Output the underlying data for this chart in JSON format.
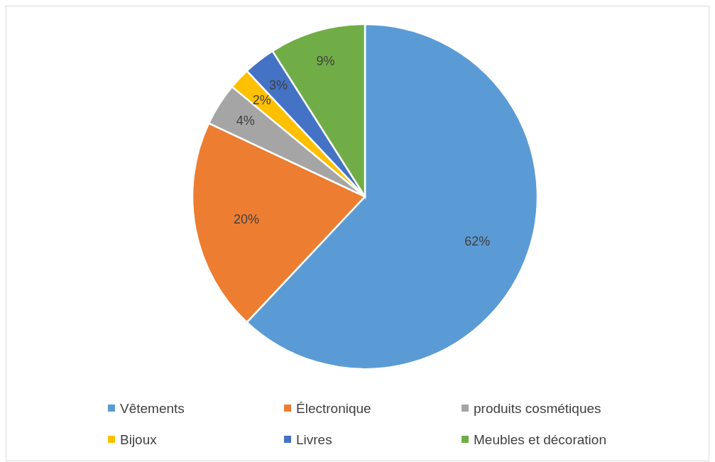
{
  "chart_data": {
    "type": "pie",
    "categories": [
      "Vêtements",
      "Électronique",
      "produits cosmétiques",
      "Bijoux",
      "Livres",
      "Meubles et décoration"
    ],
    "values": [
      62,
      20,
      4,
      2,
      3,
      9
    ],
    "colors": [
      "#5b9bd5",
      "#ed7d31",
      "#a5a5a5",
      "#ffc000",
      "#4472c4",
      "#70ad47"
    ],
    "value_labels": [
      "62%",
      "20%",
      "4%",
      "2%",
      "3%",
      "9%"
    ],
    "legend": "bottom"
  }
}
